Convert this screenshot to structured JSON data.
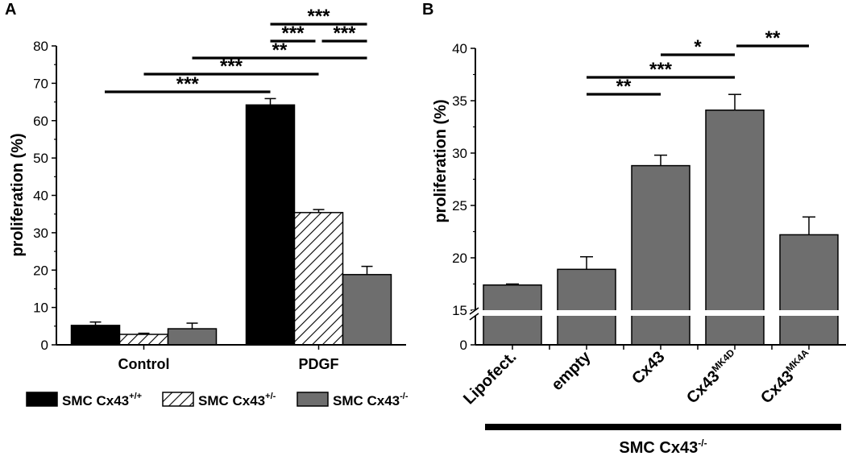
{
  "chart_data": [
    {
      "panel": "A",
      "type": "bar",
      "ylabel": "proliferation (%)",
      "ylim": [
        0,
        80
      ],
      "yticks": [
        "0",
        "10",
        "20",
        "30",
        "40",
        "50",
        "60",
        "70",
        "80"
      ],
      "categories": [
        "Control",
        "PDGF"
      ],
      "series": [
        {
          "name": "SMC Cx43",
          "sup": "+/+",
          "color": "#000000",
          "pattern": "solid",
          "values": [
            5.2,
            64.2
          ],
          "errors": [
            0.9,
            1.7
          ]
        },
        {
          "name": "SMC Cx43",
          "sup": "+/-",
          "color": "#ffffff",
          "pattern": "hatch",
          "values": [
            2.8,
            35.4
          ],
          "errors": [
            0.3,
            0.8
          ]
        },
        {
          "name": "SMC Cx43",
          "sup": "-/-",
          "color": "#6e6e6e",
          "pattern": "solid",
          "values": [
            4.3,
            18.8
          ],
          "errors": [
            1.5,
            2.2
          ]
        }
      ],
      "significance": [
        {
          "label": "***"
        },
        {
          "label": "***"
        },
        {
          "label": "**"
        },
        {
          "label": "***"
        },
        {
          "label": "***"
        },
        {
          "label": "***"
        }
      ]
    },
    {
      "panel": "B",
      "type": "bar",
      "ylabel": "proliferation (%)",
      "axis_break": true,
      "yticks_upper": [
        "15",
        "20",
        "25",
        "30",
        "35",
        "40"
      ],
      "ytick_lower": "0",
      "color": "#6e6e6e",
      "categories": [
        {
          "text": "Lipofect.",
          "sup": ""
        },
        {
          "text": "empty",
          "sup": ""
        },
        {
          "text": "Cx43",
          "sup": ""
        },
        {
          "text": "Cx43",
          "sup": "MK4D"
        },
        {
          "text": "Cx43",
          "sup": "MK4A"
        }
      ],
      "values": [
        17.4,
        18.9,
        28.8,
        34.1,
        22.2
      ],
      "errors": [
        0.1,
        1.2,
        1.0,
        1.5,
        1.7
      ],
      "group_label": {
        "text": "SMC Cx43",
        "sup": "-/-"
      },
      "significance": [
        {
          "label": "**"
        },
        {
          "label": "***"
        },
        {
          "label": "*"
        },
        {
          "label": "**"
        }
      ]
    }
  ]
}
